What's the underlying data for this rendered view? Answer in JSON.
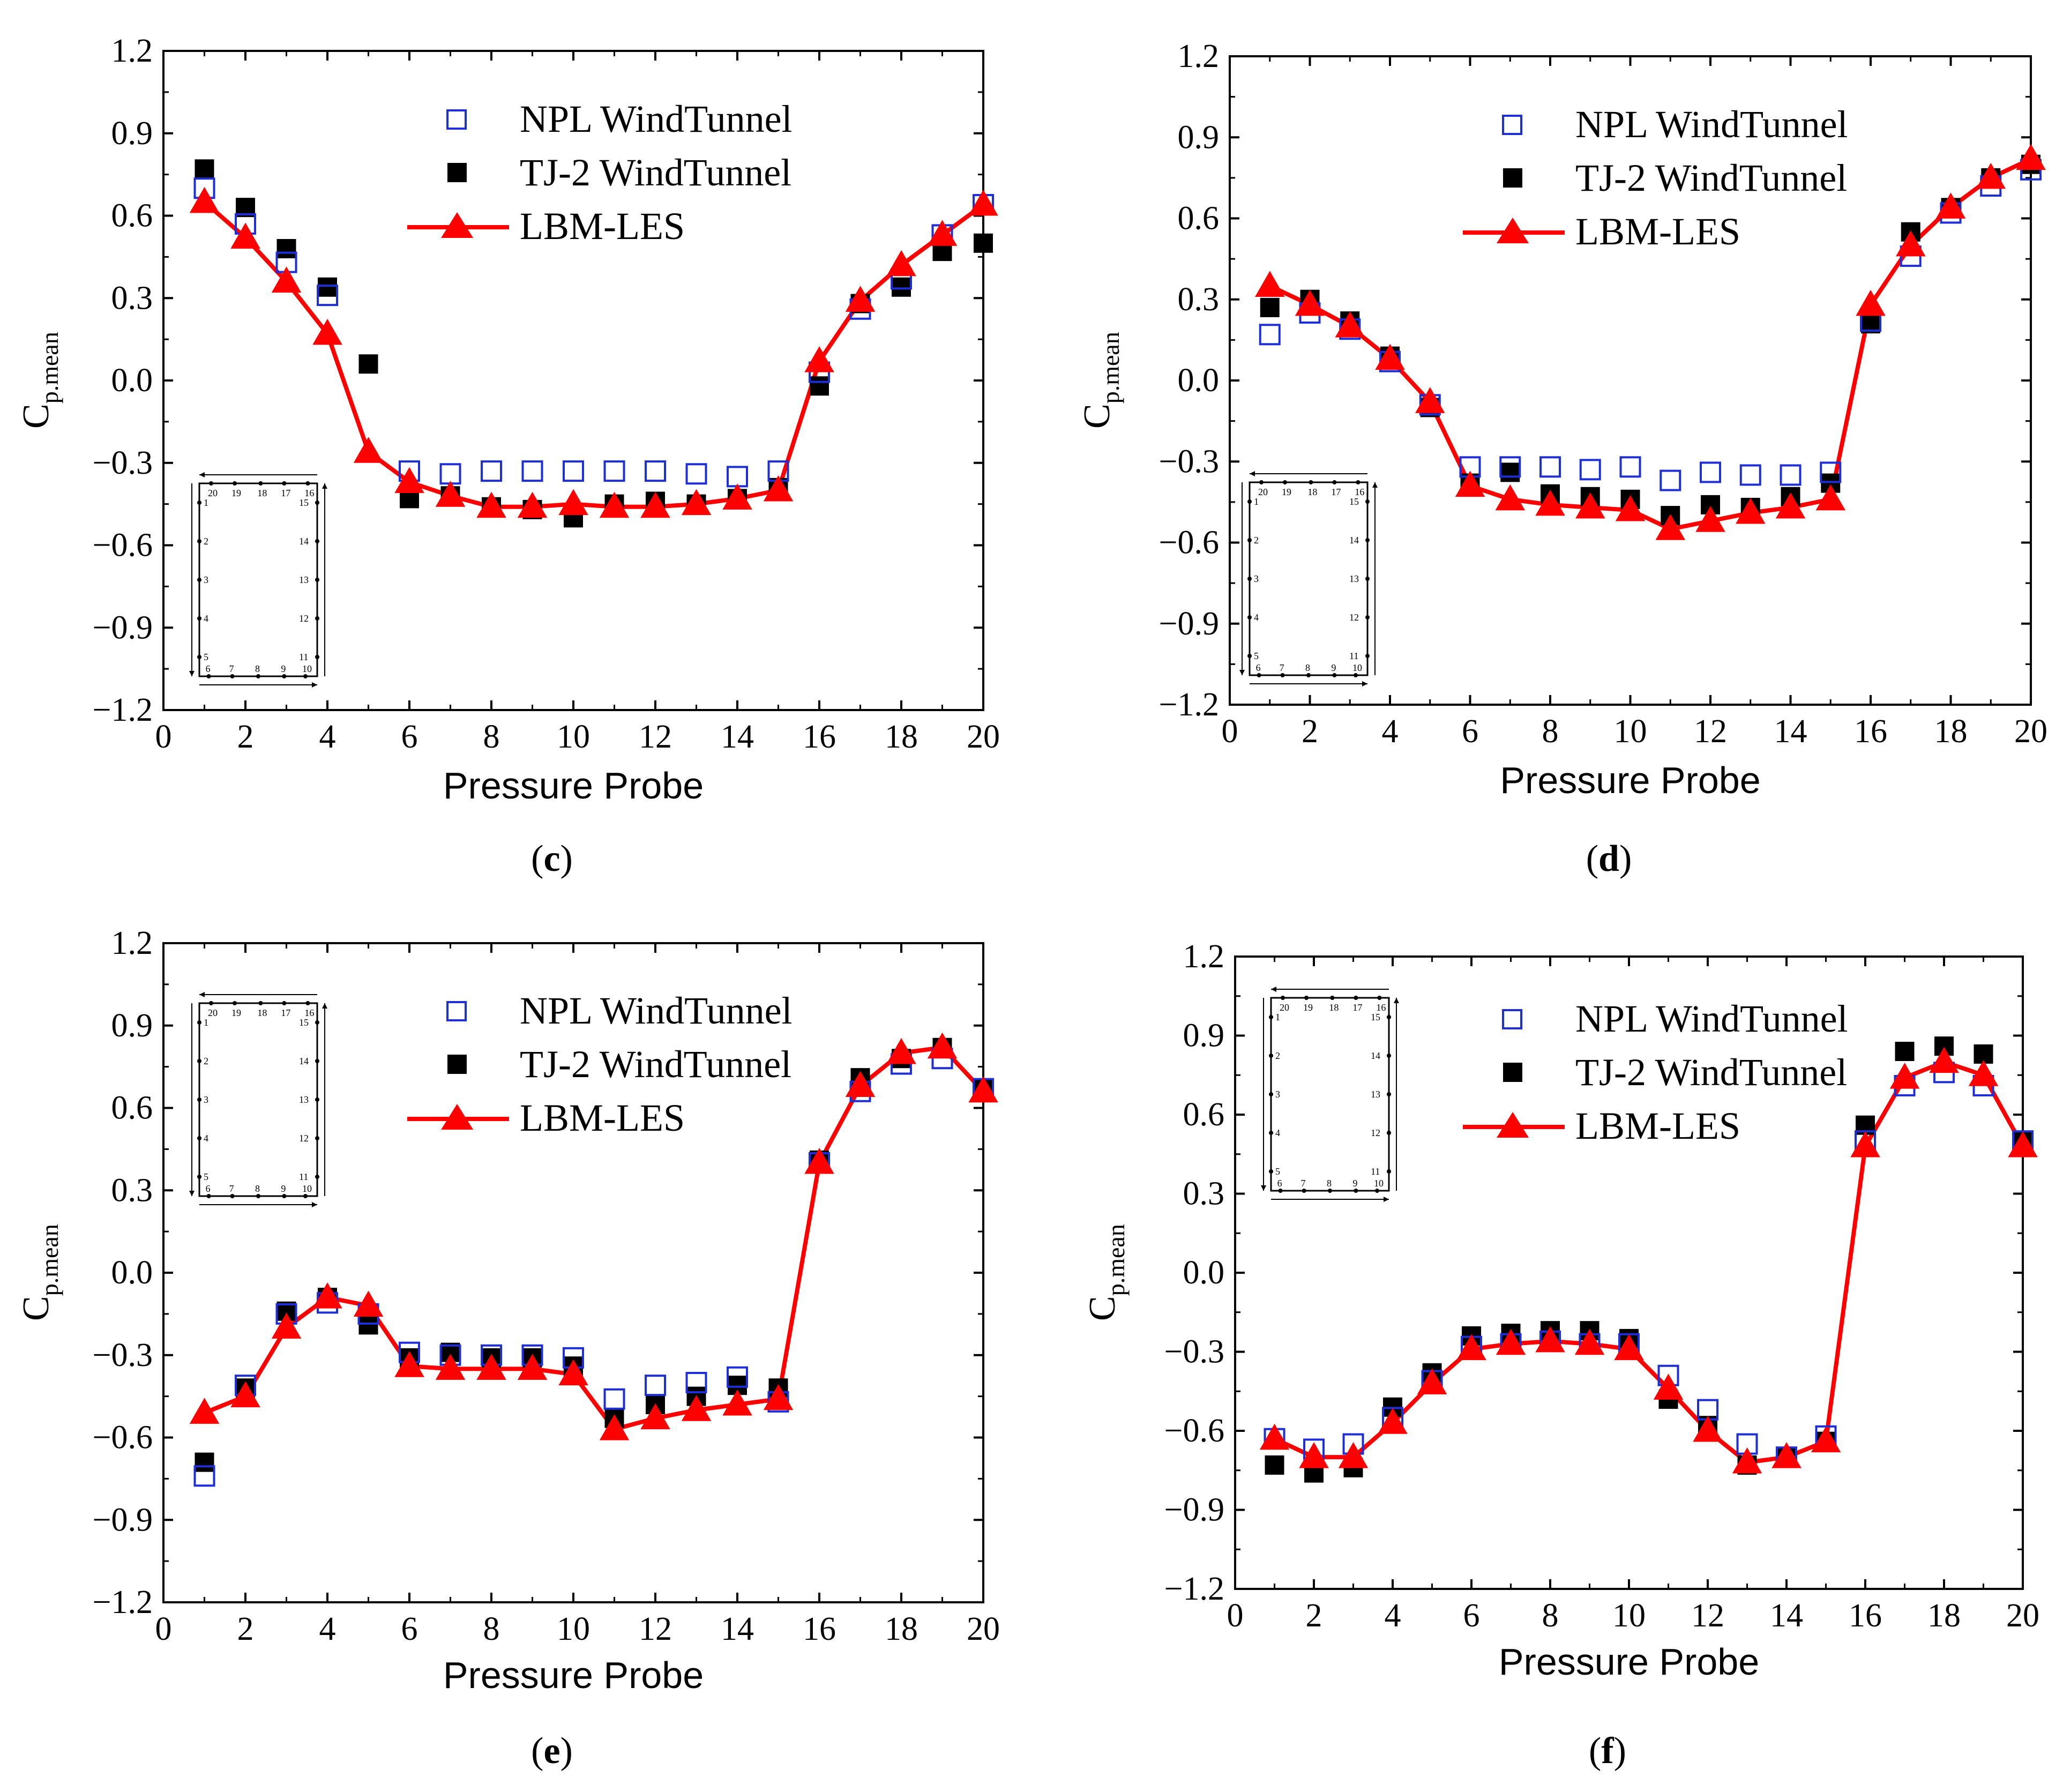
{
  "colors": {
    "npl": "#1f2fd6",
    "tj2": "#000000",
    "lbm": "#ff0000",
    "axis": "#000000"
  },
  "chart_data": [
    {
      "panel": "(c)",
      "panel_letter": "c",
      "type": "line",
      "xlabel": "Pressure Probe",
      "ylabel": "C",
      "ylabel_sub": "p.mean",
      "xlim": [
        0,
        20
      ],
      "ylim": [
        -1.2,
        1.2
      ],
      "xticks": [
        "0",
        "2",
        "4",
        "6",
        "8",
        "10",
        "12",
        "14",
        "16",
        "18",
        "20"
      ],
      "yticks": [
        "1.2",
        "0.9",
        "0.6",
        "0.3",
        "0.0",
        "−0.3",
        "−0.6",
        "−0.9",
        "−1.2"
      ],
      "legend_position": "top-center",
      "inset_position": "bottom-left",
      "x": [
        1,
        2,
        3,
        4,
        5,
        6,
        7,
        8,
        9,
        10,
        11,
        12,
        13,
        14,
        15,
        16,
        17,
        18,
        19,
        20
      ],
      "series": [
        {
          "name": "NPL WindTunnel",
          "marker": "open-square",
          "values": [
            0.7,
            0.57,
            0.43,
            0.31,
            null,
            -0.33,
            -0.34,
            -0.33,
            -0.33,
            -0.33,
            -0.33,
            -0.33,
            -0.34,
            -0.35,
            -0.33,
            0.03,
            0.26,
            0.37,
            0.53,
            0.64
          ]
        },
        {
          "name": "TJ-2 WindTunnel",
          "marker": "filled-square",
          "values": [
            0.77,
            0.63,
            0.48,
            0.34,
            0.06,
            -0.43,
            -0.42,
            -0.46,
            -0.47,
            -0.5,
            -0.45,
            -0.44,
            -0.45,
            -0.43,
            -0.39,
            -0.02,
            0.28,
            0.34,
            0.47,
            0.5
          ]
        },
        {
          "name": "LBM-LES",
          "marker": "triangle-line",
          "values": [
            0.65,
            0.52,
            0.36,
            0.17,
            -0.26,
            -0.37,
            -0.42,
            -0.46,
            -0.46,
            -0.45,
            -0.46,
            -0.46,
            -0.45,
            -0.43,
            -0.4,
            0.07,
            0.29,
            0.42,
            0.53,
            0.64
          ]
        }
      ]
    },
    {
      "panel": "(d)",
      "panel_letter": "d",
      "type": "line",
      "xlabel": "Pressure Probe",
      "ylabel": "C",
      "ylabel_sub": "p.mean",
      "xlim": [
        0,
        20
      ],
      "ylim": [
        -1.2,
        1.2
      ],
      "xticks": [
        "0",
        "2",
        "4",
        "6",
        "8",
        "10",
        "12",
        "14",
        "16",
        "18",
        "20"
      ],
      "yticks": [
        "1.2",
        "0.9",
        "0.6",
        "0.3",
        "0.0",
        "−0.3",
        "−0.6",
        "−0.9",
        "−1.2"
      ],
      "legend_position": "top-center",
      "inset_position": "bottom-left",
      "x": [
        1,
        2,
        3,
        4,
        5,
        6,
        7,
        8,
        9,
        10,
        11,
        12,
        13,
        14,
        15,
        16,
        17,
        18,
        19,
        20
      ],
      "series": [
        {
          "name": "NPL WindTunnel",
          "marker": "open-square",
          "values": [
            0.17,
            0.25,
            0.19,
            0.07,
            -0.09,
            -0.32,
            -0.32,
            -0.32,
            -0.33,
            -0.32,
            -0.37,
            -0.34,
            -0.35,
            -0.35,
            -0.34,
            0.22,
            0.46,
            0.62,
            0.72,
            0.78
          ]
        },
        {
          "name": "TJ-2 WindTunnel",
          "marker": "filled-square",
          "values": [
            0.27,
            0.3,
            0.22,
            0.09,
            -0.1,
            -0.38,
            -0.34,
            -0.42,
            -0.43,
            -0.44,
            -0.5,
            -0.46,
            -0.47,
            -0.43,
            -0.38,
            0.21,
            0.55,
            0.64,
            0.75,
            0.8
          ]
        },
        {
          "name": "LBM-LES",
          "marker": "triangle-line",
          "values": [
            0.35,
            0.28,
            0.2,
            0.08,
            -0.08,
            -0.39,
            -0.44,
            -0.46,
            -0.47,
            -0.48,
            -0.55,
            -0.52,
            -0.49,
            -0.47,
            -0.44,
            0.28,
            0.5,
            0.64,
            0.75,
            0.82
          ]
        }
      ]
    },
    {
      "panel": "(e)",
      "panel_letter": "e",
      "type": "line",
      "xlabel": "Pressure Probe",
      "ylabel": "C",
      "ylabel_sub": "p.mean",
      "xlim": [
        0,
        20
      ],
      "ylim": [
        -1.2,
        1.2
      ],
      "xticks": [
        "0",
        "2",
        "4",
        "6",
        "8",
        "10",
        "12",
        "14",
        "16",
        "18",
        "20"
      ],
      "yticks": [
        "1.2",
        "0.9",
        "0.6",
        "0.3",
        "0.0",
        "−0.3",
        "−0.6",
        "−0.9",
        "−1.2"
      ],
      "legend_position": "top-center",
      "inset_position": "top-left",
      "x": [
        1,
        2,
        3,
        4,
        5,
        6,
        7,
        8,
        9,
        10,
        11,
        12,
        13,
        14,
        15,
        16,
        17,
        18,
        19,
        20
      ],
      "series": [
        {
          "name": "NPL WindTunnel",
          "marker": "open-square",
          "values": [
            -0.74,
            -0.41,
            -0.15,
            -0.11,
            -0.15,
            -0.29,
            -0.3,
            -0.3,
            -0.3,
            -0.31,
            -0.46,
            -0.41,
            -0.4,
            -0.38,
            -0.47,
            0.4,
            0.66,
            0.76,
            0.78,
            0.67
          ]
        },
        {
          "name": "TJ-2 WindTunnel",
          "marker": "filled-square",
          "values": [
            -0.69,
            -0.42,
            -0.14,
            -0.09,
            -0.19,
            -0.31,
            -0.29,
            -0.31,
            -0.31,
            -0.34,
            -0.53,
            -0.48,
            -0.45,
            -0.41,
            -0.42,
            0.41,
            0.71,
            0.78,
            0.82,
            0.67
          ]
        },
        {
          "name": "LBM-LES",
          "marker": "triangle-line",
          "values": [
            -0.51,
            -0.45,
            -0.2,
            -0.09,
            -0.12,
            -0.34,
            -0.35,
            -0.35,
            -0.35,
            -0.37,
            -0.57,
            -0.53,
            -0.5,
            -0.48,
            -0.46,
            0.4,
            0.68,
            0.8,
            0.82,
            0.66
          ]
        }
      ]
    },
    {
      "panel": "(f)",
      "panel_letter": "f",
      "type": "line",
      "xlabel": "Pressure Probe",
      "ylabel": "C",
      "ylabel_sub": "p.mean",
      "xlim": [
        0,
        20
      ],
      "ylim": [
        -1.2,
        1.2
      ],
      "xticks": [
        "0",
        "2",
        "4",
        "6",
        "8",
        "10",
        "12",
        "14",
        "16",
        "18",
        "20"
      ],
      "yticks": [
        "1.2",
        "0.9",
        "0.6",
        "0.3",
        "0.0",
        "−0.3",
        "−0.6",
        "−0.9",
        "−1.2"
      ],
      "legend_position": "top-right",
      "inset_position": "top-left",
      "x": [
        1,
        2,
        3,
        4,
        5,
        6,
        7,
        8,
        9,
        10,
        11,
        12,
        13,
        14,
        15,
        16,
        17,
        18,
        19,
        20
      ],
      "series": [
        {
          "name": "NPL WindTunnel",
          "marker": "open-square",
          "values": [
            -0.63,
            -0.67,
            -0.65,
            -0.55,
            -0.41,
            -0.28,
            -0.27,
            -0.26,
            -0.27,
            -0.27,
            -0.39,
            -0.52,
            -0.65,
            -0.7,
            -0.62,
            0.5,
            0.71,
            0.76,
            0.71,
            0.5
          ]
        },
        {
          "name": "TJ-2 WindTunnel",
          "marker": "filled-square",
          "values": [
            -0.73,
            -0.76,
            -0.74,
            -0.51,
            -0.38,
            -0.24,
            -0.23,
            -0.22,
            -0.22,
            -0.25,
            -0.48,
            -0.58,
            -0.73,
            -0.7,
            -0.64,
            0.56,
            0.84,
            0.86,
            0.83,
            0.5
          ]
        },
        {
          "name": "LBM-LES",
          "marker": "triangle-line",
          "values": [
            -0.63,
            -0.7,
            -0.7,
            -0.57,
            -0.42,
            -0.29,
            -0.27,
            -0.26,
            -0.27,
            -0.29,
            -0.44,
            -0.6,
            -0.72,
            -0.7,
            -0.64,
            0.48,
            0.74,
            0.8,
            0.75,
            0.48
          ]
        }
      ]
    }
  ],
  "inset": {
    "top_labels": [
      "20",
      "19",
      "18",
      "17",
      "16"
    ],
    "left_labels": [
      "1",
      "2",
      "3",
      "4",
      "5"
    ],
    "bottom_labels": [
      "6",
      "7",
      "8",
      "9",
      "10"
    ],
    "right_labels": [
      "15",
      "14",
      "13",
      "12",
      "11"
    ]
  }
}
